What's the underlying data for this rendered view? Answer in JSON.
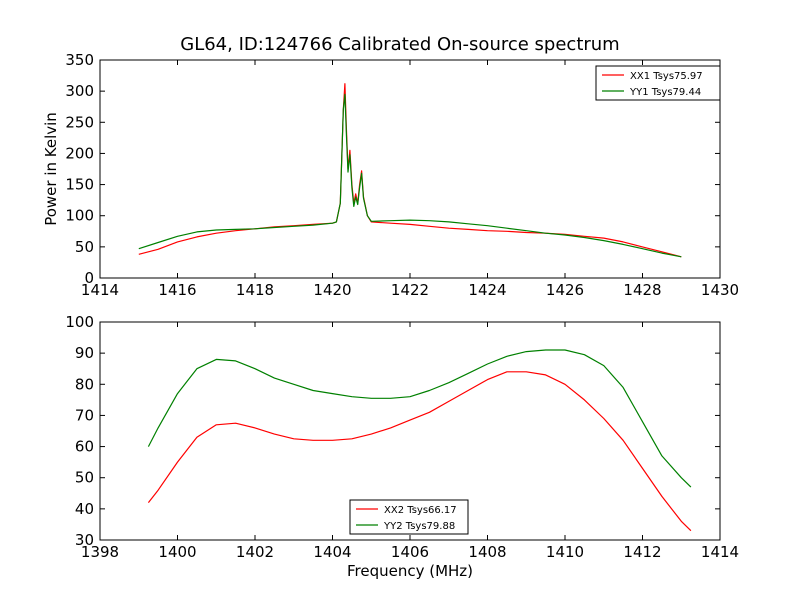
{
  "figure": {
    "title": "GL64, ID:124766 Calibrated On-source spectrum",
    "xlabel": "Frequency (MHz)"
  },
  "chart_data": [
    {
      "type": "line",
      "ylabel": "Power in Kelvin",
      "xlim": [
        1414,
        1430
      ],
      "ylim": [
        0,
        350
      ],
      "xticks": [
        1414,
        1416,
        1418,
        1420,
        1422,
        1424,
        1426,
        1428,
        1430
      ],
      "yticks": [
        0,
        50,
        100,
        150,
        200,
        250,
        300,
        350
      ],
      "grid": false,
      "legend_position": "top-right",
      "series": [
        {
          "name": "XX1 Tsys75.97",
          "color": "#ff0000",
          "x": [
            1415.0,
            1415.5,
            1416.0,
            1416.5,
            1417.0,
            1417.5,
            1418.0,
            1418.5,
            1419.0,
            1419.5,
            1420.0,
            1420.1,
            1420.2,
            1420.28,
            1420.32,
            1420.36,
            1420.4,
            1420.45,
            1420.5,
            1420.55,
            1420.6,
            1420.65,
            1420.7,
            1420.75,
            1420.8,
            1420.9,
            1421.0,
            1421.5,
            1422.0,
            1422.5,
            1423.0,
            1423.5,
            1424.0,
            1424.5,
            1425.0,
            1425.5,
            1426.0,
            1426.5,
            1427.0,
            1427.5,
            1428.0,
            1428.5,
            1429.0
          ],
          "values": [
            38,
            46,
            58,
            66,
            72,
            76,
            79,
            82,
            84,
            86,
            88,
            90,
            120,
            270,
            312,
            240,
            175,
            205,
            150,
            120,
            135,
            120,
            150,
            172,
            130,
            100,
            90,
            88,
            86,
            83,
            80,
            78,
            76,
            75,
            73,
            72,
            70,
            67,
            64,
            58,
            50,
            42,
            34
          ]
        },
        {
          "name": "YY1 Tsys79.44",
          "color": "#008000",
          "x": [
            1415.0,
            1415.5,
            1416.0,
            1416.5,
            1417.0,
            1417.5,
            1418.0,
            1418.5,
            1419.0,
            1419.5,
            1420.0,
            1420.1,
            1420.2,
            1420.28,
            1420.32,
            1420.36,
            1420.4,
            1420.45,
            1420.5,
            1420.55,
            1420.6,
            1420.65,
            1420.7,
            1420.75,
            1420.8,
            1420.9,
            1421.0,
            1421.5,
            1422.0,
            1422.5,
            1423.0,
            1423.5,
            1424.0,
            1424.5,
            1425.0,
            1425.5,
            1426.0,
            1426.5,
            1427.0,
            1427.5,
            1428.0,
            1428.5,
            1429.0
          ],
          "values": [
            47,
            57,
            67,
            74,
            77,
            78,
            79,
            81,
            83,
            85,
            88,
            90,
            120,
            270,
            295,
            230,
            170,
            198,
            145,
            115,
            130,
            118,
            145,
            168,
            128,
            100,
            91,
            92,
            93,
            92,
            90,
            87,
            84,
            80,
            76,
            72,
            69,
            65,
            60,
            54,
            47,
            40,
            34
          ]
        }
      ]
    },
    {
      "type": "line",
      "xlabel": "Frequency (MHz)",
      "xlim": [
        1398,
        1414
      ],
      "ylim": [
        30,
        100
      ],
      "xticks": [
        1398,
        1400,
        1402,
        1404,
        1406,
        1408,
        1410,
        1412,
        1414
      ],
      "yticks": [
        30,
        40,
        50,
        60,
        70,
        80,
        90,
        100
      ],
      "grid": false,
      "legend_position": "bottom-center",
      "series": [
        {
          "name": "XX2 Tsys66.17",
          "color": "#ff0000",
          "x": [
            1399.25,
            1399.5,
            1400.0,
            1400.5,
            1401.0,
            1401.5,
            1402.0,
            1402.5,
            1403.0,
            1403.5,
            1404.0,
            1404.5,
            1405.0,
            1405.5,
            1406.0,
            1406.5,
            1407.0,
            1407.5,
            1408.0,
            1408.5,
            1409.0,
            1409.5,
            1410.0,
            1410.5,
            1411.0,
            1411.5,
            1412.0,
            1412.5,
            1413.0,
            1413.25
          ],
          "values": [
            42,
            46,
            55,
            63,
            67,
            67.5,
            66,
            64,
            62.5,
            62,
            62,
            62.5,
            64,
            66,
            68.5,
            71,
            74.5,
            78,
            81.5,
            84,
            84,
            83,
            80,
            75,
            69,
            62,
            53,
            44,
            36,
            33
          ]
        },
        {
          "name": "YY2 Tsys79.88",
          "color": "#008000",
          "x": [
            1399.25,
            1399.5,
            1400.0,
            1400.5,
            1401.0,
            1401.5,
            1402.0,
            1402.5,
            1403.0,
            1403.5,
            1404.0,
            1404.5,
            1405.0,
            1405.5,
            1406.0,
            1406.5,
            1407.0,
            1407.5,
            1408.0,
            1408.5,
            1409.0,
            1409.5,
            1410.0,
            1410.5,
            1411.0,
            1411.5,
            1412.0,
            1412.5,
            1413.0,
            1413.25
          ],
          "values": [
            60,
            66,
            77,
            85,
            88,
            87.5,
            85,
            82,
            80,
            78,
            77,
            76,
            75.5,
            75.5,
            76,
            78,
            80.5,
            83.5,
            86.5,
            89,
            90.5,
            91,
            91,
            89.5,
            86,
            79,
            68,
            57,
            50,
            47
          ]
        }
      ]
    }
  ]
}
